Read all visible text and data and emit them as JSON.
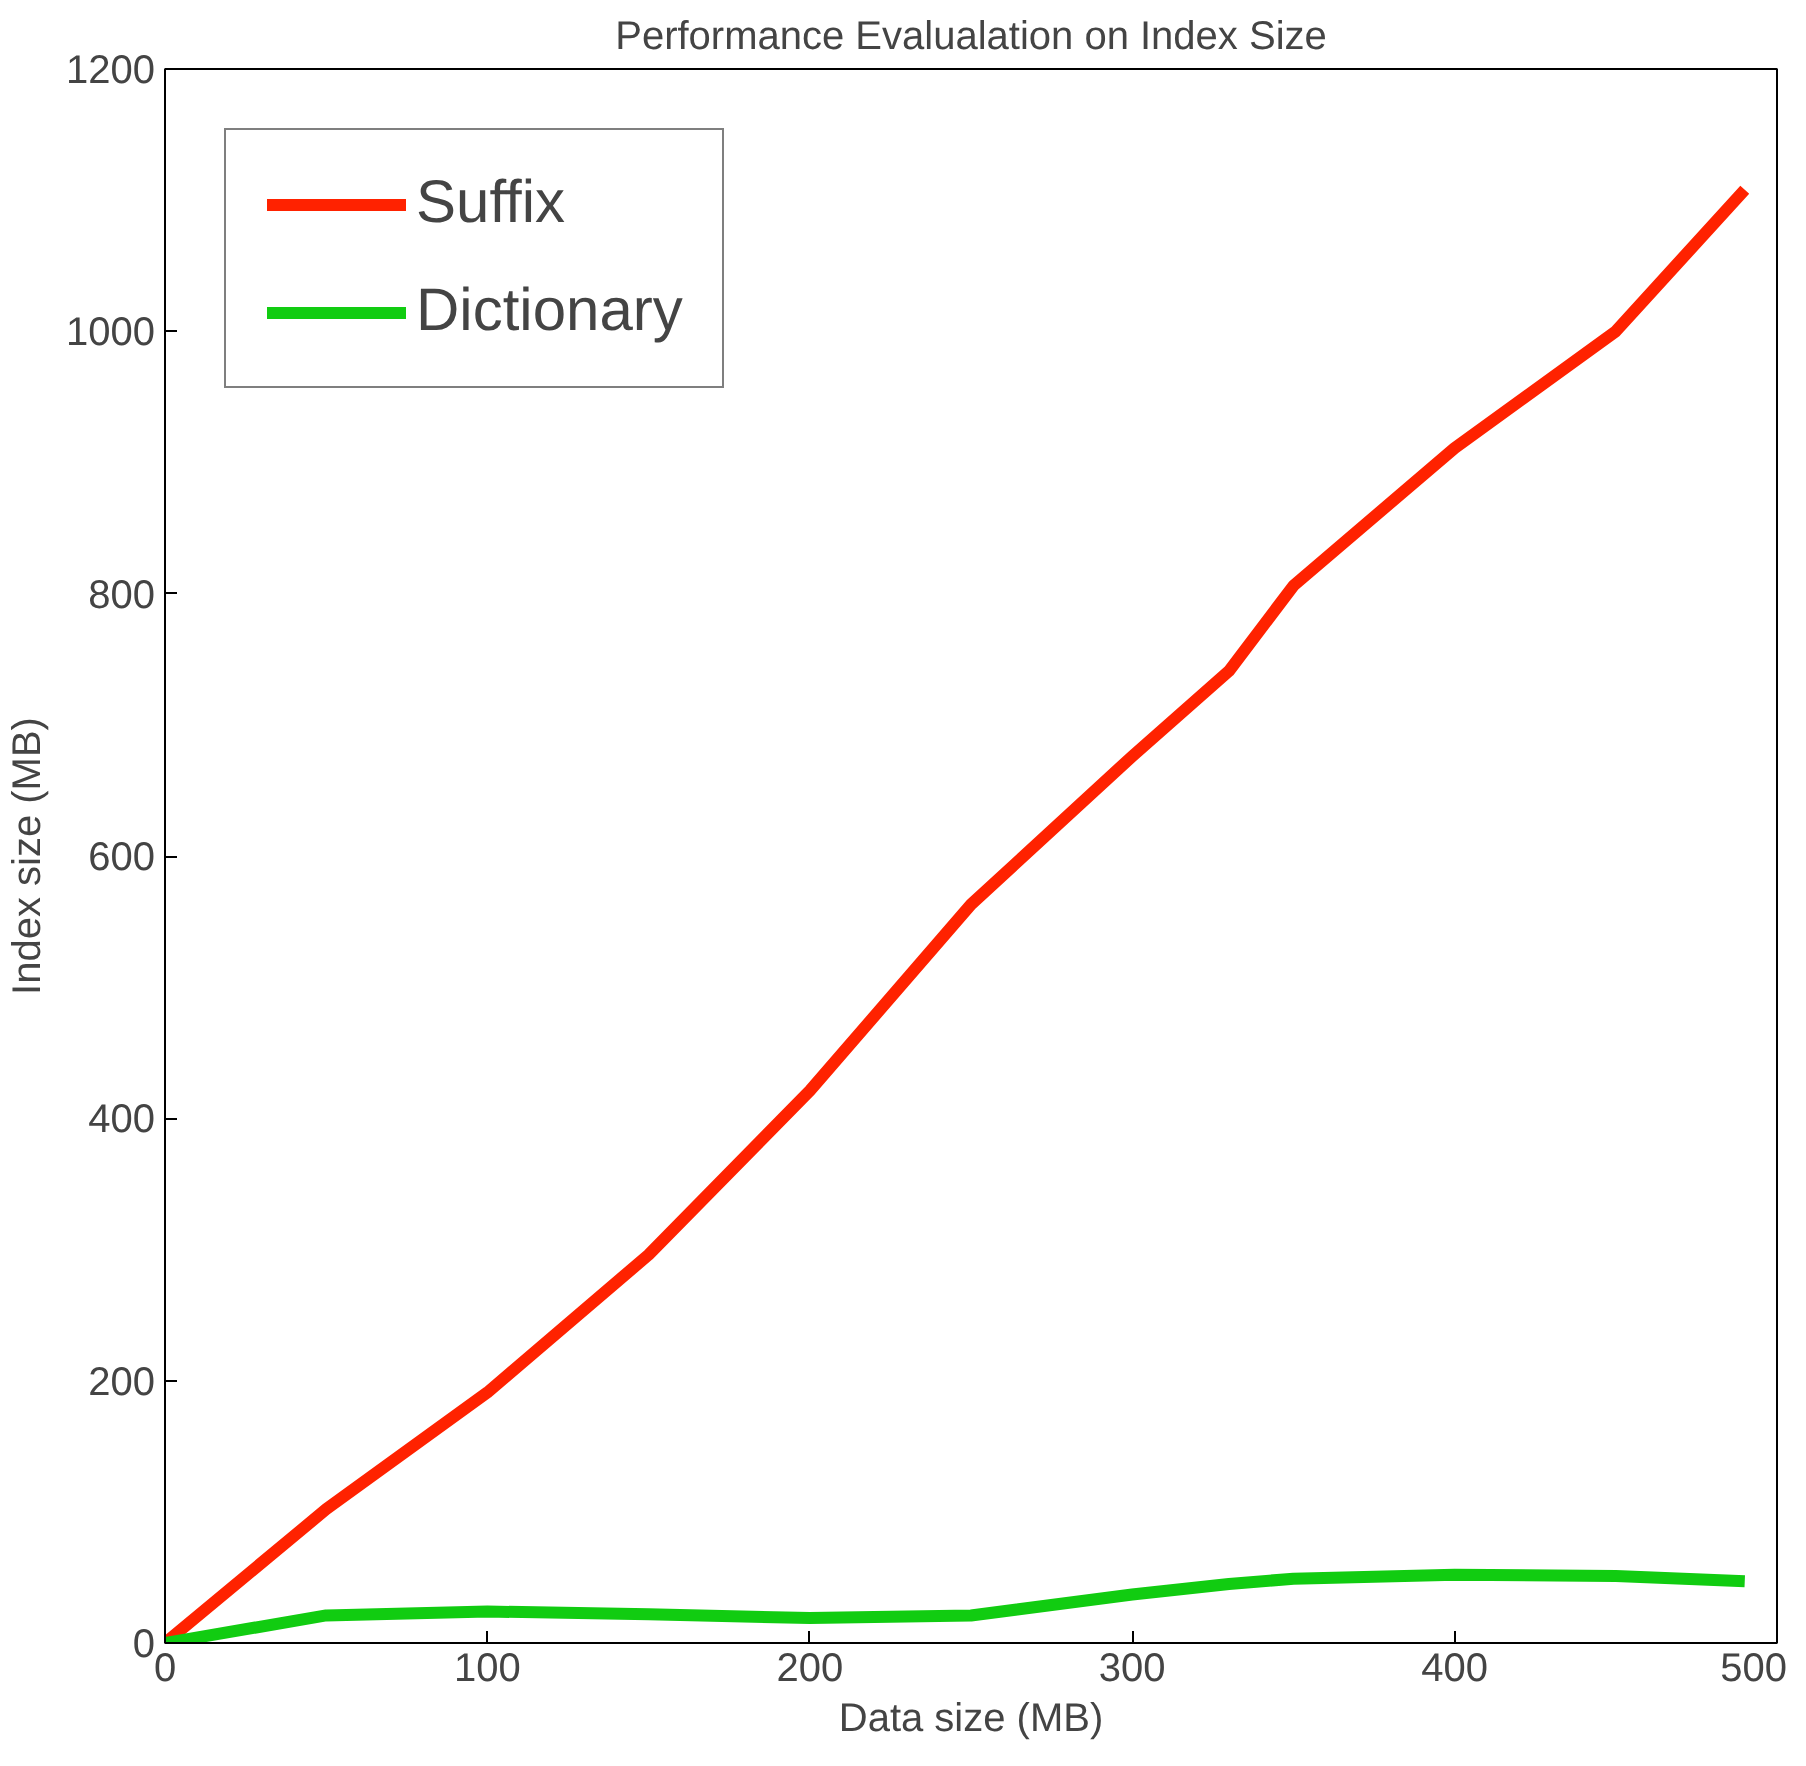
{
  "chart_data": {
    "type": "line",
    "title": "Performance Evalualation on Index Size",
    "xlabel": "Data size (MB)",
    "ylabel": "Index size (MB)",
    "x": [
      0,
      50,
      100,
      150,
      200,
      250,
      300,
      330,
      350,
      400,
      450,
      490
    ],
    "series": [
      {
        "name": "Suffix",
        "color": "#ff2200",
        "values": [
          0,
          102,
          191,
          296,
          421,
          563,
          676,
          741,
          806,
          911,
          1000,
          1108
        ]
      },
      {
        "name": "Dictionary",
        "color": "#11cc11",
        "values": [
          0,
          21,
          24,
          22,
          19,
          21,
          37,
          45,
          49,
          52,
          51,
          47
        ]
      }
    ],
    "xlim": [
      0,
      500
    ],
    "ylim": [
      0,
      1200
    ],
    "xticks": [
      0,
      100,
      200,
      300,
      400,
      500
    ],
    "yticks": [
      0,
      200,
      400,
      600,
      800,
      1000,
      1200
    ],
    "grid": false,
    "legend": "top left",
    "marker": "none",
    "line_style": "solid"
  }
}
